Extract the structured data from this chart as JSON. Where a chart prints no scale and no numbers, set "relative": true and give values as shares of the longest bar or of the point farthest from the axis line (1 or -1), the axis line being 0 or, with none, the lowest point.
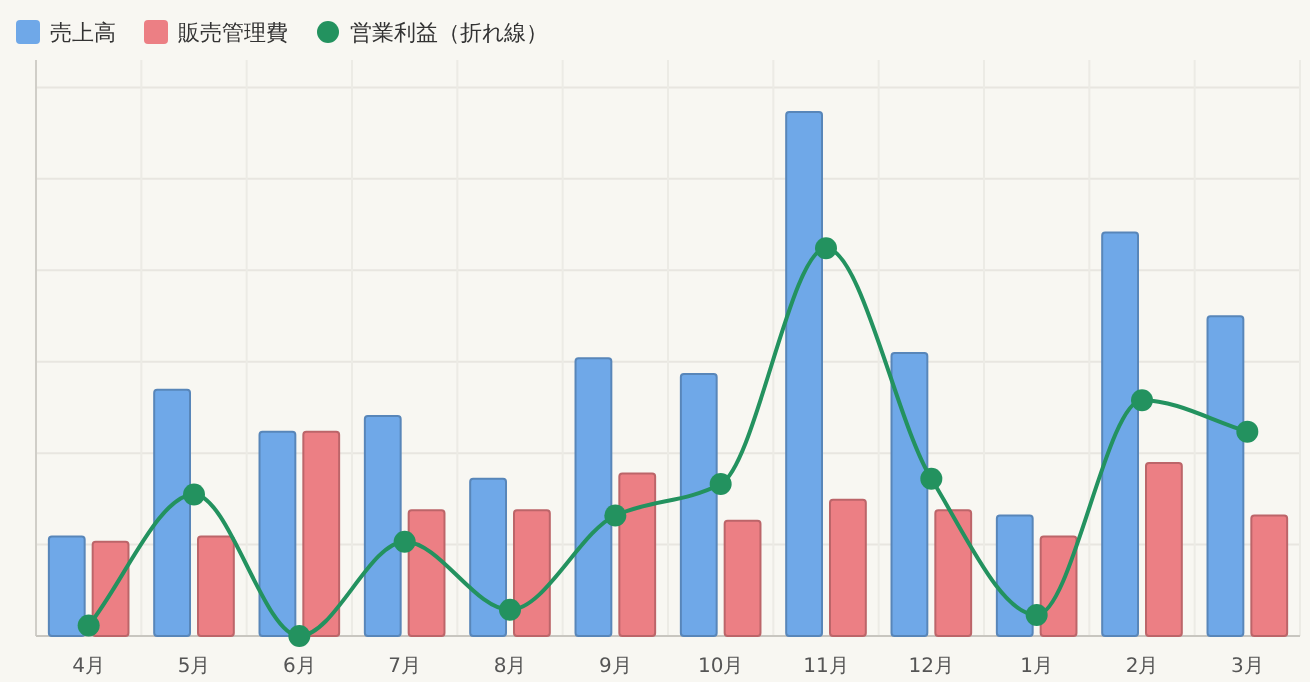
{
  "chart_data": {
    "type": "bar",
    "relative": true,
    "grid": true,
    "legend": "top left",
    "marker": "circle",
    "line_style": "solid",
    "categories": [
      "4月",
      "5月",
      "6月",
      "7月",
      "8月",
      "9月",
      "10月",
      "11月",
      "12月",
      "1月",
      "2月",
      "3月"
    ],
    "series": [
      {
        "name": "売上高",
        "type": "bar",
        "color": "#6fa8e8",
        "values": [
          0.19,
          0.47,
          0.39,
          0.42,
          0.3,
          0.53,
          0.5,
          1,
          0.54,
          0.23,
          0.77,
          0.61
        ]
      },
      {
        "name": "販売管理費",
        "type": "bar",
        "color": "#ec7f84",
        "values": [
          0.18,
          0.19,
          0.39,
          0.24,
          0.24,
          0.31,
          0.22,
          0.26,
          0.24,
          0.19,
          0.33,
          0.23
        ]
      },
      {
        "name": "営業利益（折れ線）",
        "type": "line",
        "color": "#23925f",
        "values": [
          0.02,
          0.27,
          0,
          0.18,
          0.05,
          0.23,
          0.29,
          0.74,
          0.3,
          0.04,
          0.45,
          0.39
        ]
      }
    ]
  }
}
